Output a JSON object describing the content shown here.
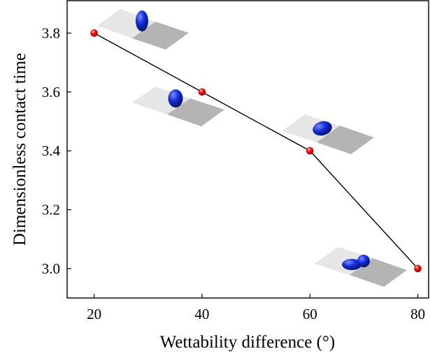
{
  "chart_data": {
    "type": "line",
    "title": "",
    "xlabel": "Wettability difference (°)",
    "ylabel": "Dimensionless contact time",
    "xlim": [
      15,
      82
    ],
    "ylim": [
      2.9,
      3.91
    ],
    "x_ticks": [
      20,
      40,
      60,
      80
    ],
    "y_ticks": [
      3.0,
      3.2,
      3.4,
      3.6,
      3.8
    ],
    "x_tick_labels": [
      "20",
      "40",
      "60",
      "80"
    ],
    "y_tick_labels": [
      "3.0",
      "3.2",
      "3.4",
      "3.6",
      "3.8"
    ],
    "grid": false,
    "legend": "none",
    "series": [
      {
        "x": [
          20,
          40,
          60,
          80
        ],
        "y": [
          3.8,
          3.6,
          3.4,
          3.0
        ],
        "line_color": "#000000",
        "marker_color": "#ff1a1a"
      }
    ],
    "annotations": [
      {
        "type": "droplet-on-surface-inset",
        "at_x": 20,
        "droplet_shape": "tall-ellipse"
      },
      {
        "type": "droplet-on-surface-inset",
        "at_x": 40,
        "droplet_shape": "rounded-blob"
      },
      {
        "type": "droplet-on-surface-inset",
        "at_x": 60,
        "droplet_shape": "spreading-blob"
      },
      {
        "type": "droplet-on-surface-inset",
        "at_x": 80,
        "droplet_shape": "splitting-droplet"
      }
    ]
  },
  "colors": {
    "droplet": "#1530d8",
    "surface_light": "#e6e6e6",
    "surface_dark": "#b4b4b4"
  }
}
